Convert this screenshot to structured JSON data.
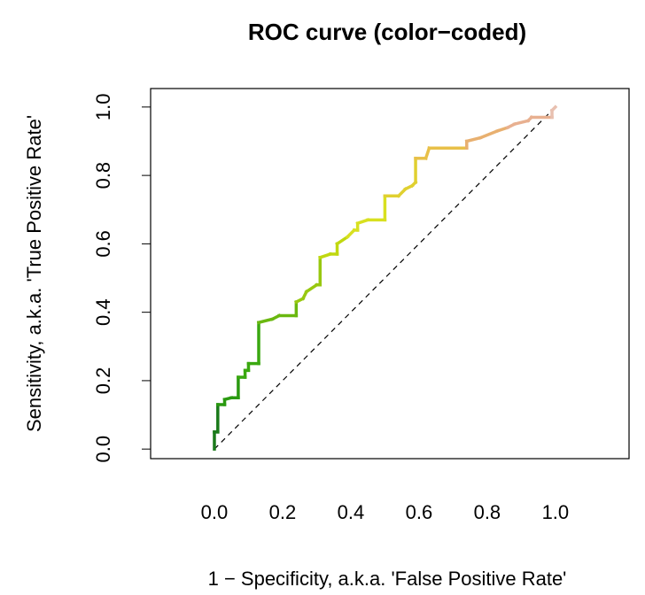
{
  "chart_data": {
    "type": "line",
    "title": "ROC curve (color−coded)",
    "x_label": "1 − Specificity, a.k.a. 'False Positive Rate'",
    "y_label": "Sensitivity, a.k.a. 'True Positive Rate'",
    "x": [
      0,
      0,
      0.01,
      0.01,
      0.03,
      0.03,
      0.05,
      0.07,
      0.07,
      0.09,
      0.09,
      0.1,
      0.1,
      0.13,
      0.13,
      0.17,
      0.19,
      0.24,
      0.24,
      0.26,
      0.27,
      0.3,
      0.31,
      0.31,
      0.34,
      0.36,
      0.36,
      0.39,
      0.41,
      0.42,
      0.42,
      0.45,
      0.5,
      0.5,
      0.54,
      0.56,
      0.58,
      0.59,
      0.59,
      0.62,
      0.63,
      0.74,
      0.74,
      0.78,
      0.83,
      0.86,
      0.88,
      0.92,
      0.93,
      0.99,
      0.99,
      1
    ],
    "values": [
      0,
      0.05,
      0.05,
      0.13,
      0.13,
      0.145,
      0.15,
      0.15,
      0.21,
      0.21,
      0.23,
      0.23,
      0.25,
      0.25,
      0.37,
      0.38,
      0.39,
      0.39,
      0.43,
      0.44,
      0.46,
      0.48,
      0.48,
      0.56,
      0.57,
      0.57,
      0.6,
      0.62,
      0.64,
      0.64,
      0.66,
      0.67,
      0.67,
      0.74,
      0.74,
      0.76,
      0.77,
      0.78,
      0.85,
      0.85,
      0.88,
      0.88,
      0.9,
      0.91,
      0.93,
      0.94,
      0.95,
      0.96,
      0.97,
      0.97,
      0.99,
      1
    ],
    "segment_colors": [
      "#1a7a1a",
      "#1a7a1a",
      "#1a7a1a",
      "#2a9a10",
      "#2a9a10",
      "#2a9a10",
      "#2a9a10",
      "#2a9a10",
      "#3aa810",
      "#3aa810",
      "#3aa810",
      "#3aa810",
      "#3aa810",
      "#3aa810",
      "#6ab810",
      "#6ab810",
      "#6ab810",
      "#6ab810",
      "#98c810",
      "#98c810",
      "#98c810",
      "#98c810",
      "#98c810",
      "#c0d810",
      "#c0d810",
      "#c0d810",
      "#c0d810",
      "#d8e020",
      "#d8e020",
      "#d8e020",
      "#d8e020",
      "#d8e020",
      "#d8e020",
      "#e0d030",
      "#e0d030",
      "#e0d030",
      "#e0d030",
      "#e0d030",
      "#e8c048",
      "#e8c048",
      "#e8c048",
      "#e8b070",
      "#e8b070",
      "#e8b070",
      "#e8b070",
      "#e8b090",
      "#e8b090",
      "#e8b090",
      "#e8b090",
      "#e8c0b0",
      "#e8c0b0"
    ],
    "reference_line": {
      "x": [
        0,
        1
      ],
      "y": [
        0,
        1
      ]
    },
    "xlim": [
      -0.187,
      1.216
    ],
    "ylim": [
      -0.028,
      1.054
    ],
    "xticks": [
      {
        "value": 0,
        "label": "0.0"
      },
      0.2,
      0.4,
      0.6,
      0.8,
      {
        "value": 1,
        "label": "1.0"
      }
    ],
    "yticks": [
      {
        "value": 0,
        "label": "0.0"
      },
      0.2,
      0.4,
      0.6,
      0.8,
      {
        "value": 1,
        "label": "1.0"
      }
    ]
  }
}
